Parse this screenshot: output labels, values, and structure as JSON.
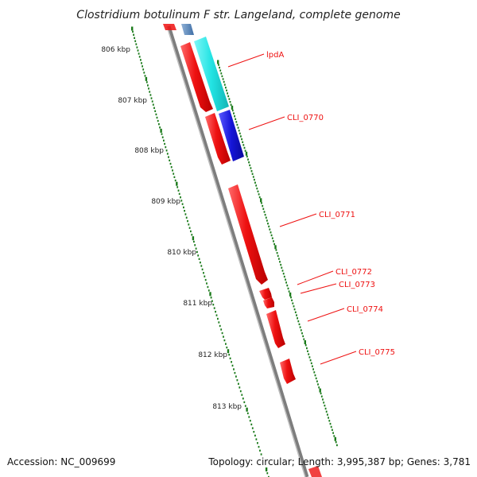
{
  "title": "Clostridium botulinum F str. Langeland, complete genome",
  "footer": {
    "accession": "Accession: NC_009699",
    "summary": "Topology: circular; Length: 3,995,387 bp; Genes: 3,781"
  },
  "colors": {
    "forward_cds": "#ee1111",
    "label_line": "#ee1111",
    "tick": "#1a7a1a",
    "backbone": "#888888",
    "cyan_feature": "#22e3e3",
    "blue_feature": "#1515d8"
  },
  "kbp_labels": [
    "806 kbp",
    "807 kbp",
    "808 kbp",
    "809 kbp",
    "810 kbp",
    "811 kbp",
    "812 kbp",
    "813 kbp"
  ],
  "genes": [
    "lpdA",
    "CLI_0770",
    "CLI_0771",
    "CLI_0772",
    "CLI_0773",
    "CLI_0774",
    "CLI_0775"
  ]
}
